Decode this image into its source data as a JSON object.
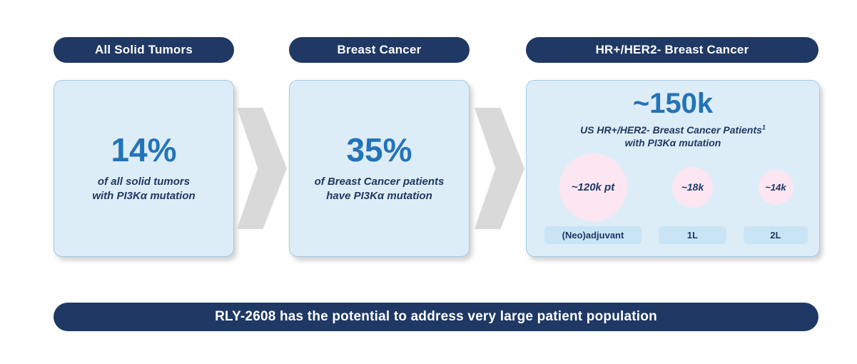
{
  "columns": [
    {
      "header": "All Solid Tumors",
      "stat": "14%",
      "desc1": "of all solid tumors",
      "desc2": "with PI3Kα mutation"
    },
    {
      "header": "Breast Cancer",
      "stat": "35%",
      "desc1": "of Breast Cancer patients",
      "desc2": "have PI3Kα mutation"
    },
    {
      "header": "HR+/HER2- Breast Cancer",
      "stat": "~150k",
      "desc1": "US HR+/HER2- Breast Cancer Patients",
      "desc1_sup": "1",
      "desc2": "with PI3Kα mutation",
      "segments": [
        {
          "circle_label": "~120k pt",
          "stage_label": "(Neo)adjuvant"
        },
        {
          "circle_label": "~18k",
          "stage_label": "1L"
        },
        {
          "circle_label": "~14k",
          "stage_label": "2L"
        }
      ]
    }
  ],
  "banner": "RLY-2608 has the potential to address very large patient population",
  "colors": {
    "navy": "#1f3864",
    "accent_blue": "#2373b9",
    "box_fill": "#ddedf7",
    "box_border": "#9fcbe5",
    "circle_pink": "#fce6f2",
    "chip_blue": "#c9e4f5",
    "arrow_gray": "#d9d9d9"
  }
}
